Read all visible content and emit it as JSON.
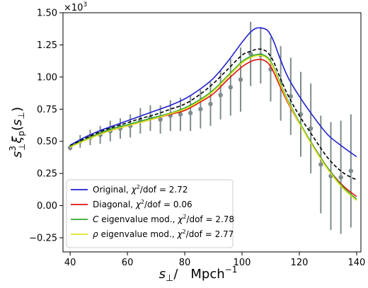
{
  "chart_data": {
    "type": "line",
    "title": "",
    "xlabel": "s_⊥/   Mpch⁻¹",
    "ylabel": "s³_⊥ ξ_p(s_⊥)",
    "x_axis_label_parts": {
      "main": "s",
      "sub": "⊥",
      "slash": "/",
      "unit": "Mpch",
      "sup": "−1"
    },
    "y_axis_label_parts": {
      "s": "s",
      "sup3": "3",
      "sub_perp": "⊥",
      "xi": "ξ",
      "sub_p": "p",
      "open": "(",
      "arg": "s",
      "arg_sub": "⊥",
      "close": ")"
    },
    "y_scale_label": "×10³",
    "y_scale_parts": {
      "base": "×10",
      "exp": "3"
    },
    "xlim": [
      37.5,
      141.5
    ],
    "ylim": [
      -0.36,
      1.5
    ],
    "xticks": [
      40,
      60,
      80,
      100,
      120,
      140
    ],
    "xtick_labels": [
      "40",
      "60",
      "80",
      "100",
      "120",
      "140"
    ],
    "yticks": [
      -0.25,
      0.0,
      0.25,
      0.5,
      0.75,
      1.0,
      1.25,
      1.5
    ],
    "ytick_labels": [
      "−0.25",
      "0.00",
      "0.25",
      "0.50",
      "0.75",
      "1.00",
      "1.25",
      "1.50"
    ],
    "grid": false,
    "legend_position": "bottom-left",
    "x": [
      40,
      45,
      50,
      55,
      60,
      65,
      70,
      75,
      80,
      85,
      90,
      95,
      100,
      103,
      105,
      107,
      109,
      111,
      113,
      116,
      120,
      125,
      130,
      135,
      140
    ],
    "series": [
      {
        "name": "Original, χ²/dof = 2.72",
        "legend_parts": {
          "pre": "Original, ",
          "chi": "χ",
          "sup": "2",
          "post": "/dof = 2.72"
        },
        "color": "#1f1fd0",
        "style": "solid",
        "values": [
          0.47,
          0.53,
          0.58,
          0.62,
          0.66,
          0.7,
          0.74,
          0.78,
          0.83,
          0.9,
          0.99,
          1.12,
          1.27,
          1.35,
          1.38,
          1.38,
          1.36,
          1.28,
          1.16,
          1.0,
          0.85,
          0.69,
          0.55,
          0.46,
          0.38
        ]
      },
      {
        "name": "Diagonal, χ²/dof = 0.06",
        "legend_parts": {
          "pre": "Diagonal, ",
          "chi": "χ",
          "sup": "2",
          "post": "/dof = 0.06"
        },
        "color": "#e01010",
        "style": "solid",
        "values": [
          0.46,
          0.51,
          0.56,
          0.59,
          0.62,
          0.65,
          0.68,
          0.71,
          0.74,
          0.8,
          0.87,
          0.98,
          1.08,
          1.12,
          1.135,
          1.135,
          1.11,
          1.04,
          0.94,
          0.8,
          0.64,
          0.46,
          0.29,
          0.16,
          0.07
        ]
      },
      {
        "name": "C eigenvalue mod., χ²/dof = 2.78",
        "legend_parts": {
          "pre": "",
          "ital": "C",
          "mid": " eigenvalue mod., ",
          "chi": "χ",
          "sup": "2",
          "post": "/dof = 2.78"
        },
        "color": "#2fa82f",
        "style": "solid",
        "values": [
          0.46,
          0.51,
          0.56,
          0.6,
          0.63,
          0.66,
          0.69,
          0.72,
          0.76,
          0.82,
          0.9,
          1.01,
          1.12,
          1.16,
          1.175,
          1.175,
          1.15,
          1.08,
          0.97,
          0.82,
          0.65,
          0.46,
          0.29,
          0.15,
          0.05
        ]
      },
      {
        "name": "ρ eigenvalue mod., χ²/dof = 2.77",
        "legend_parts": {
          "pre": "",
          "ital": "ρ",
          "mid": " eigenvalue mod., ",
          "chi": "χ",
          "sup": "2",
          "post": "/dof = 2.77"
        },
        "color": "#e6e020",
        "style": "solid",
        "values": [
          0.455,
          0.505,
          0.55,
          0.59,
          0.62,
          0.65,
          0.68,
          0.715,
          0.75,
          0.81,
          0.89,
          1.0,
          1.11,
          1.15,
          1.165,
          1.165,
          1.14,
          1.07,
          0.96,
          0.81,
          0.64,
          0.45,
          0.28,
          0.14,
          0.04
        ]
      },
      {
        "name": "",
        "color": "#000000",
        "style": "dashed",
        "values": [
          0.465,
          0.52,
          0.57,
          0.61,
          0.645,
          0.68,
          0.71,
          0.75,
          0.79,
          0.86,
          0.95,
          1.06,
          1.17,
          1.2,
          1.215,
          1.215,
          1.19,
          1.12,
          1.01,
          0.86,
          0.7,
          0.53,
          0.37,
          0.26,
          0.2
        ]
      }
    ],
    "data_points": {
      "color": "#7f8c8c",
      "x": [
        40,
        43.5,
        47,
        50.5,
        54,
        57.5,
        61,
        64.5,
        68,
        71.5,
        75,
        78.5,
        82,
        85.5,
        89,
        92.5,
        96,
        99.5,
        103,
        106.5,
        110,
        113.5,
        117,
        120.5,
        124,
        127.5,
        131,
        134.5,
        138
      ],
      "y": [
        0.45,
        0.5,
        0.53,
        0.55,
        0.58,
        0.6,
        0.62,
        0.66,
        0.68,
        0.67,
        0.7,
        0.71,
        0.72,
        0.75,
        0.79,
        0.86,
        0.92,
        0.98,
        1.18,
        1.17,
        1.06,
        0.95,
        0.85,
        0.71,
        0.6,
        0.32,
        0.23,
        0.22,
        0.27
      ],
      "err": [
        0.02,
        0.05,
        0.06,
        0.07,
        0.08,
        0.08,
        0.09,
        0.1,
        0.1,
        0.11,
        0.12,
        0.13,
        0.14,
        0.15,
        0.17,
        0.19,
        0.22,
        0.25,
        0.25,
        0.22,
        0.25,
        0.29,
        0.3,
        0.33,
        0.35,
        0.38,
        0.42,
        0.44,
        0.44
      ]
    }
  }
}
